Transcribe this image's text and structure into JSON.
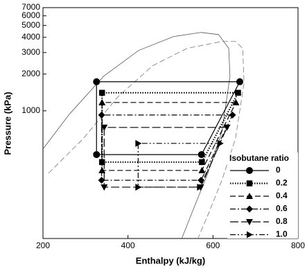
{
  "chart_data": {
    "type": "line",
    "xlabel": "Enthalpy (kJ/kg)",
    "ylabel": "Pressure (kPa)",
    "xlim": [
      200,
      800
    ],
    "xticks": [
      200,
      400,
      600,
      800
    ],
    "ylim": [
      90,
      7000
    ],
    "yticks": [
      1000,
      2000,
      3000,
      4000,
      5000,
      6000,
      7000
    ],
    "log_y": true,
    "legend_title": "Isobutane ratio",
    "legend_loc": "lower right",
    "series": [
      {
        "name": "0",
        "marker": "circle",
        "dash": "solid",
        "color": "#000000",
        "x": [
          326,
          326,
          573,
          663
        ],
        "values": [
          1730,
          438,
          438,
          1730
        ]
      },
      {
        "name": "0.2",
        "marker": "square",
        "dash": "dotted",
        "color": "#000000",
        "x": [
          339,
          339,
          574,
          659
        ],
        "values": [
          1405,
          380,
          380,
          1405
        ]
      },
      {
        "name": "0.4",
        "marker": "triangle-up",
        "dash": "dashed",
        "color": "#000000",
        "x": [
          339,
          339,
          574,
          654
        ],
        "values": [
          1170,
          325,
          325,
          1170
        ]
      },
      {
        "name": "0.6",
        "marker": "diamond",
        "dash": "dashdot",
        "color": "#000000",
        "x": [
          338,
          338,
          572,
          646
        ],
        "values": [
          924,
          270,
          270,
          924
        ]
      },
      {
        "name": "0.8",
        "marker": "triangle-down",
        "dash": "longdash",
        "color": "#000000",
        "x": [
          344,
          344,
          571,
          633
        ],
        "values": [
          731,
          237,
          237,
          731
        ]
      },
      {
        "name": "1.0",
        "marker": "triangle-right",
        "dash": "dashdotdot",
        "color": "#000000",
        "x": [
          424,
          424,
          569,
          617
        ],
        "values": [
          541,
          237,
          237,
          541
        ]
      }
    ],
    "curves": [
      {
        "dash": "solid",
        "color": "#555555",
        "x": [
          200,
          262,
          343,
          425,
          507,
          572,
          613,
          637,
          640,
          621,
          588,
          555,
          526
        ],
        "values": [
          487,
          937,
          1922,
          3120,
          4057,
          4384,
          4215,
          3248,
          1922,
          675,
          308,
          160,
          89
        ]
      },
      {
        "dash": "dashed",
        "color": "#777777",
        "x": [
          213,
          295,
          376,
          458,
          539,
          621,
          653,
          670,
          673,
          653,
          621,
          588,
          564
        ],
        "values": [
          308,
          593,
          1299,
          2339,
          3248,
          3699,
          3699,
          3248,
          1688,
          593,
          270,
          140,
          89
        ]
      }
    ]
  }
}
